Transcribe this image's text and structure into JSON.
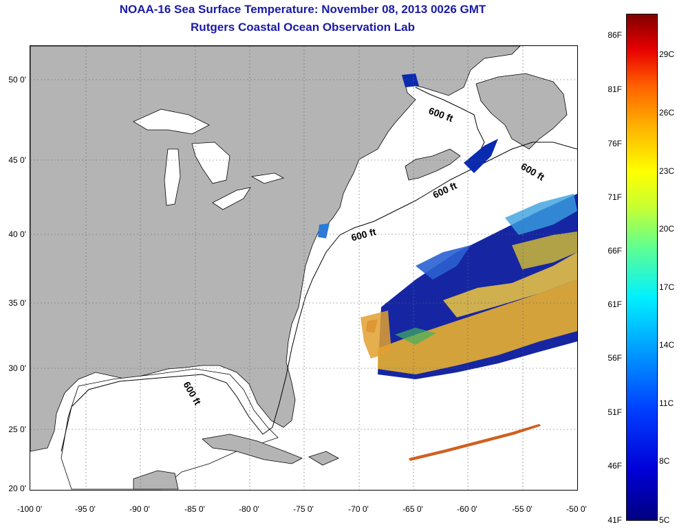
{
  "header": {
    "title": "NOAA-16 Sea Surface Temperature:  November 08, 2013 0026 GMT",
    "subtitle": "Rutgers Coastal Ocean Observation Lab"
  },
  "map": {
    "lat_labels": [
      "50 0'",
      "45 0'",
      "40 0'",
      "35 0'",
      "30 0'",
      "25 0'",
      "20 0'"
    ],
    "lon_labels": [
      "-100 0'",
      "-95 0'",
      "-90 0'",
      "-85 0'",
      "-80 0'",
      "-75 0'",
      "-70 0'",
      "-65 0'",
      "-60 0'",
      "-55 0'",
      "-50 0'"
    ],
    "depth_contour_label": "600 ft",
    "land_color": "#b4b4b4",
    "ocean_color": "#ffffff"
  },
  "colorbar": {
    "fahrenheit_labels": [
      "86F",
      "81F",
      "76F",
      "71F",
      "66F",
      "61F",
      "56F",
      "51F",
      "46F",
      "41F"
    ],
    "celsius_labels": [
      "29C",
      "26C",
      "23C",
      "20C",
      "17C",
      "14C",
      "11C",
      "8C",
      "5C"
    ],
    "low_color": "#000080",
    "high_color": "#800000"
  }
}
